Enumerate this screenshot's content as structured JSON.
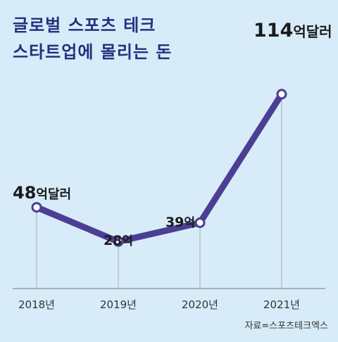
{
  "chart_data": {
    "type": "line",
    "title_lines": [
      "글로벌 스포츠 테크",
      "스타트업에 몰리는 돈"
    ],
    "categories": [
      "2018년",
      "2019년",
      "2020년",
      "2021년"
    ],
    "series": [
      {
        "values": [
          48,
          28,
          39,
          114
        ]
      }
    ],
    "data_labels": [
      {
        "number": "48",
        "unit": "억달러"
      },
      {
        "number": "28",
        "unit": "억"
      },
      {
        "number": "39",
        "unit": "억"
      },
      {
        "number": "114",
        "unit": "억달러"
      }
    ],
    "ylim": [
      0,
      120
    ],
    "grid": false,
    "source": "자료=스포츠테크엑스",
    "colors": {
      "line": "#4b3f95",
      "background": "#d7ecf8",
      "title": "#24307f"
    }
  }
}
